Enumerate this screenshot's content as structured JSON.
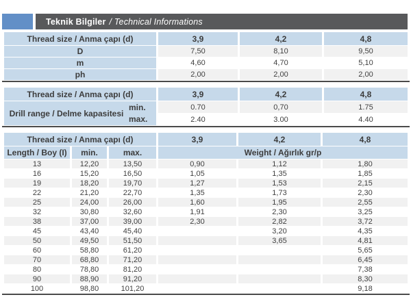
{
  "header": {
    "title_bold": "Teknik Bilgiler",
    "title_italic": "/ Technical Informations"
  },
  "colors": {
    "accent_square": "#628fc7",
    "title_bar": "#58595b",
    "header_cell_blue": "#c6d9ea",
    "row_stripe": "#f1f1f1",
    "table_border": "#4a4a4a",
    "text": "#3c3c3c"
  },
  "thread": {
    "label": "Thread size / Anma çapı (d)",
    "sizes": [
      "3,9",
      "4,2",
      "4,8"
    ]
  },
  "table1": {
    "rows": [
      {
        "label": "D",
        "values": [
          "7,50",
          "8,10",
          "9,50"
        ]
      },
      {
        "label": "m",
        "values": [
          "4,60",
          "4,70",
          "5,10"
        ]
      },
      {
        "label": "ph",
        "values": [
          "2,00",
          "2,00",
          "2,00"
        ]
      }
    ]
  },
  "table2": {
    "label": "Drill range / Delme kapasitesi",
    "rows": [
      {
        "label": "min.",
        "values": [
          "0.70",
          "0,70",
          "1.75"
        ]
      },
      {
        "label": "max.",
        "values": [
          "2.40",
          "3.00",
          "4.40"
        ]
      }
    ]
  },
  "table3": {
    "length_label": "Length / Boy (I)",
    "min_label": "min.",
    "max_label": "max.",
    "weight_label": "Weight / Ağırlık gr/p",
    "rows": [
      {
        "length": "13",
        "min": "12,20",
        "max": "13,50",
        "w39": "0,90",
        "w42": "1,12",
        "w48": "1,80"
      },
      {
        "length": "16",
        "min": "15,20",
        "max": "16,50",
        "w39": "1,05",
        "w42": "1,35",
        "w48": "1,85"
      },
      {
        "length": "19",
        "min": "18,20",
        "max": "19,70",
        "w39": "1,27",
        "w42": "1,53",
        "w48": "2,15"
      },
      {
        "length": "22",
        "min": "21,20",
        "max": "22,70",
        "w39": "1,35",
        "w42": "1,73",
        "w48": "2,30"
      },
      {
        "length": "25",
        "min": "24,00",
        "max": "26,00",
        "w39": "1,60",
        "w42": "1,95",
        "w48": "2,55"
      },
      {
        "length": "32",
        "min": "30,80",
        "max": "32,60",
        "w39": "1,91",
        "w42": "2,30",
        "w48": "3,25"
      },
      {
        "length": "38",
        "min": "37,00",
        "max": "39,00",
        "w39": "2,30",
        "w42": "2,82",
        "w48": "3,72"
      },
      {
        "length": "45",
        "min": "43,40",
        "max": "45,40",
        "w39": "",
        "w42": "3,20",
        "w48": "4,35"
      },
      {
        "length": "50",
        "min": "49,50",
        "max": "51,50",
        "w39": "",
        "w42": "3,65",
        "w48": "4,81"
      },
      {
        "length": "60",
        "min": "58,80",
        "max": "61,20",
        "w39": "",
        "w42": "",
        "w48": "5,65"
      },
      {
        "length": "70",
        "min": "68,80",
        "max": "71,20",
        "w39": "",
        "w42": "",
        "w48": "6,45"
      },
      {
        "length": "80",
        "min": "78,80",
        "max": "81,20",
        "w39": "",
        "w42": "",
        "w48": "7,38"
      },
      {
        "length": "90",
        "min": "88,90",
        "max": "91,20",
        "w39": "",
        "w42": "",
        "w48": "8,30"
      },
      {
        "length": "100",
        "min": "98,80",
        "max": "101,20",
        "w39": "",
        "w42": "",
        "w48": "9,18"
      }
    ]
  }
}
